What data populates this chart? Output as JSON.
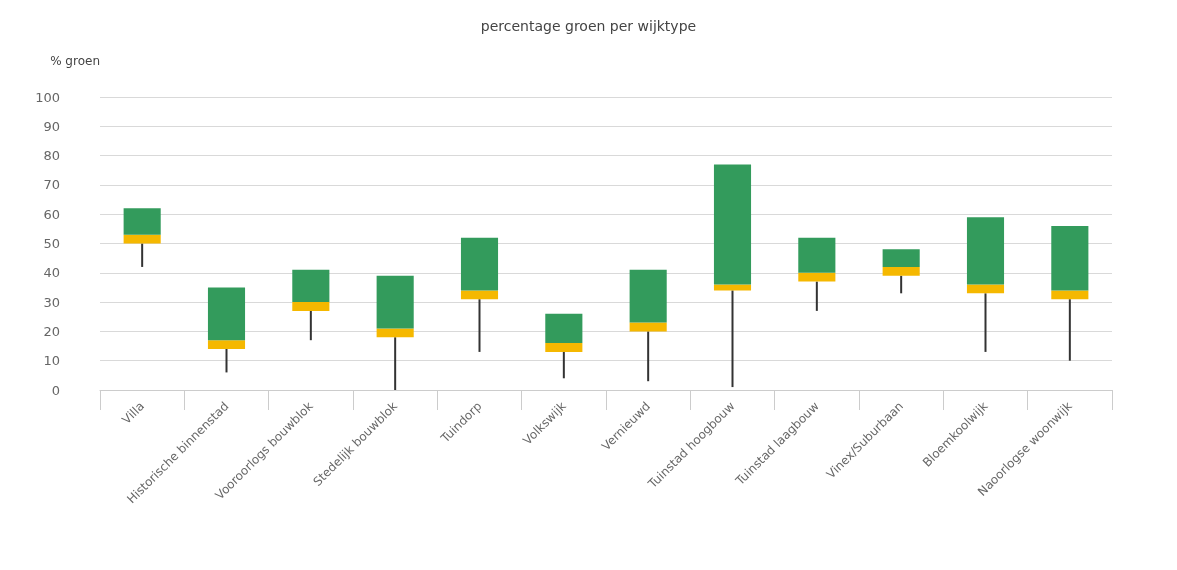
{
  "chart_data": {
    "type": "box",
    "title": "percentage groen per wijktype",
    "ylabel": "% groen",
    "categories": [
      "Villa",
      "Historische binnenstad",
      "Vooroorlogs bouwblok",
      "Stedelijk bouwblok",
      "Tuindorp",
      "Volkswijk",
      "Vernieuwd",
      "Tuinstad hoogbouw",
      "Tuinstad laagbouw",
      "Vinex/Suburbaan",
      "Bloemkoolwijk",
      "Naoorlogse woonwijk"
    ],
    "series": [
      {
        "color": "#339b5c",
        "colors": [
          "#f5b800",
          "#f5b800",
          "#f5b800",
          "#f5b800",
          "#f5b800",
          "#f5b800",
          "#f5b800",
          "#f5b800",
          "#f5b800",
          "#f5b800",
          "#f5b800",
          "#f5b800"
        ],
        "boxes": [
          {
            "low": 42,
            "q1": 50,
            "median": 53,
            "q3": 62,
            "high": 62
          },
          {
            "low": 6,
            "q1": 14,
            "median": 17,
            "q3": 35,
            "high": 35
          },
          {
            "low": 17,
            "q1": 27,
            "median": 30,
            "q3": 41,
            "high": 41
          },
          {
            "low": 0,
            "q1": 18,
            "median": 21,
            "q3": 39,
            "high": 39
          },
          {
            "low": 13,
            "q1": 31,
            "median": 34,
            "q3": 52,
            "high": 52
          },
          {
            "low": 4,
            "q1": 13,
            "median": 16,
            "q3": 26,
            "high": 26
          },
          {
            "low": 3,
            "q1": 20,
            "median": 23,
            "q3": 41,
            "high": 41
          },
          {
            "low": 1,
            "q1": 34,
            "median": 36,
            "q3": 77,
            "high": 77
          },
          {
            "low": 27,
            "q1": 37,
            "median": 40,
            "q3": 52,
            "high": 52
          },
          {
            "low": 33,
            "q1": 39,
            "median": 42,
            "q3": 48,
            "high": 48
          },
          {
            "low": 13,
            "q1": 33,
            "median": 36,
            "q3": 59,
            "high": 59
          },
          {
            "low": 10,
            "q1": 31,
            "median": 34,
            "q3": 56,
            "high": 56
          }
        ]
      }
    ],
    "ylim": [
      0,
      100
    ],
    "yticks": [
      0,
      10,
      20,
      30,
      40,
      50,
      60,
      70,
      80,
      90,
      100
    ],
    "grid": "y"
  }
}
